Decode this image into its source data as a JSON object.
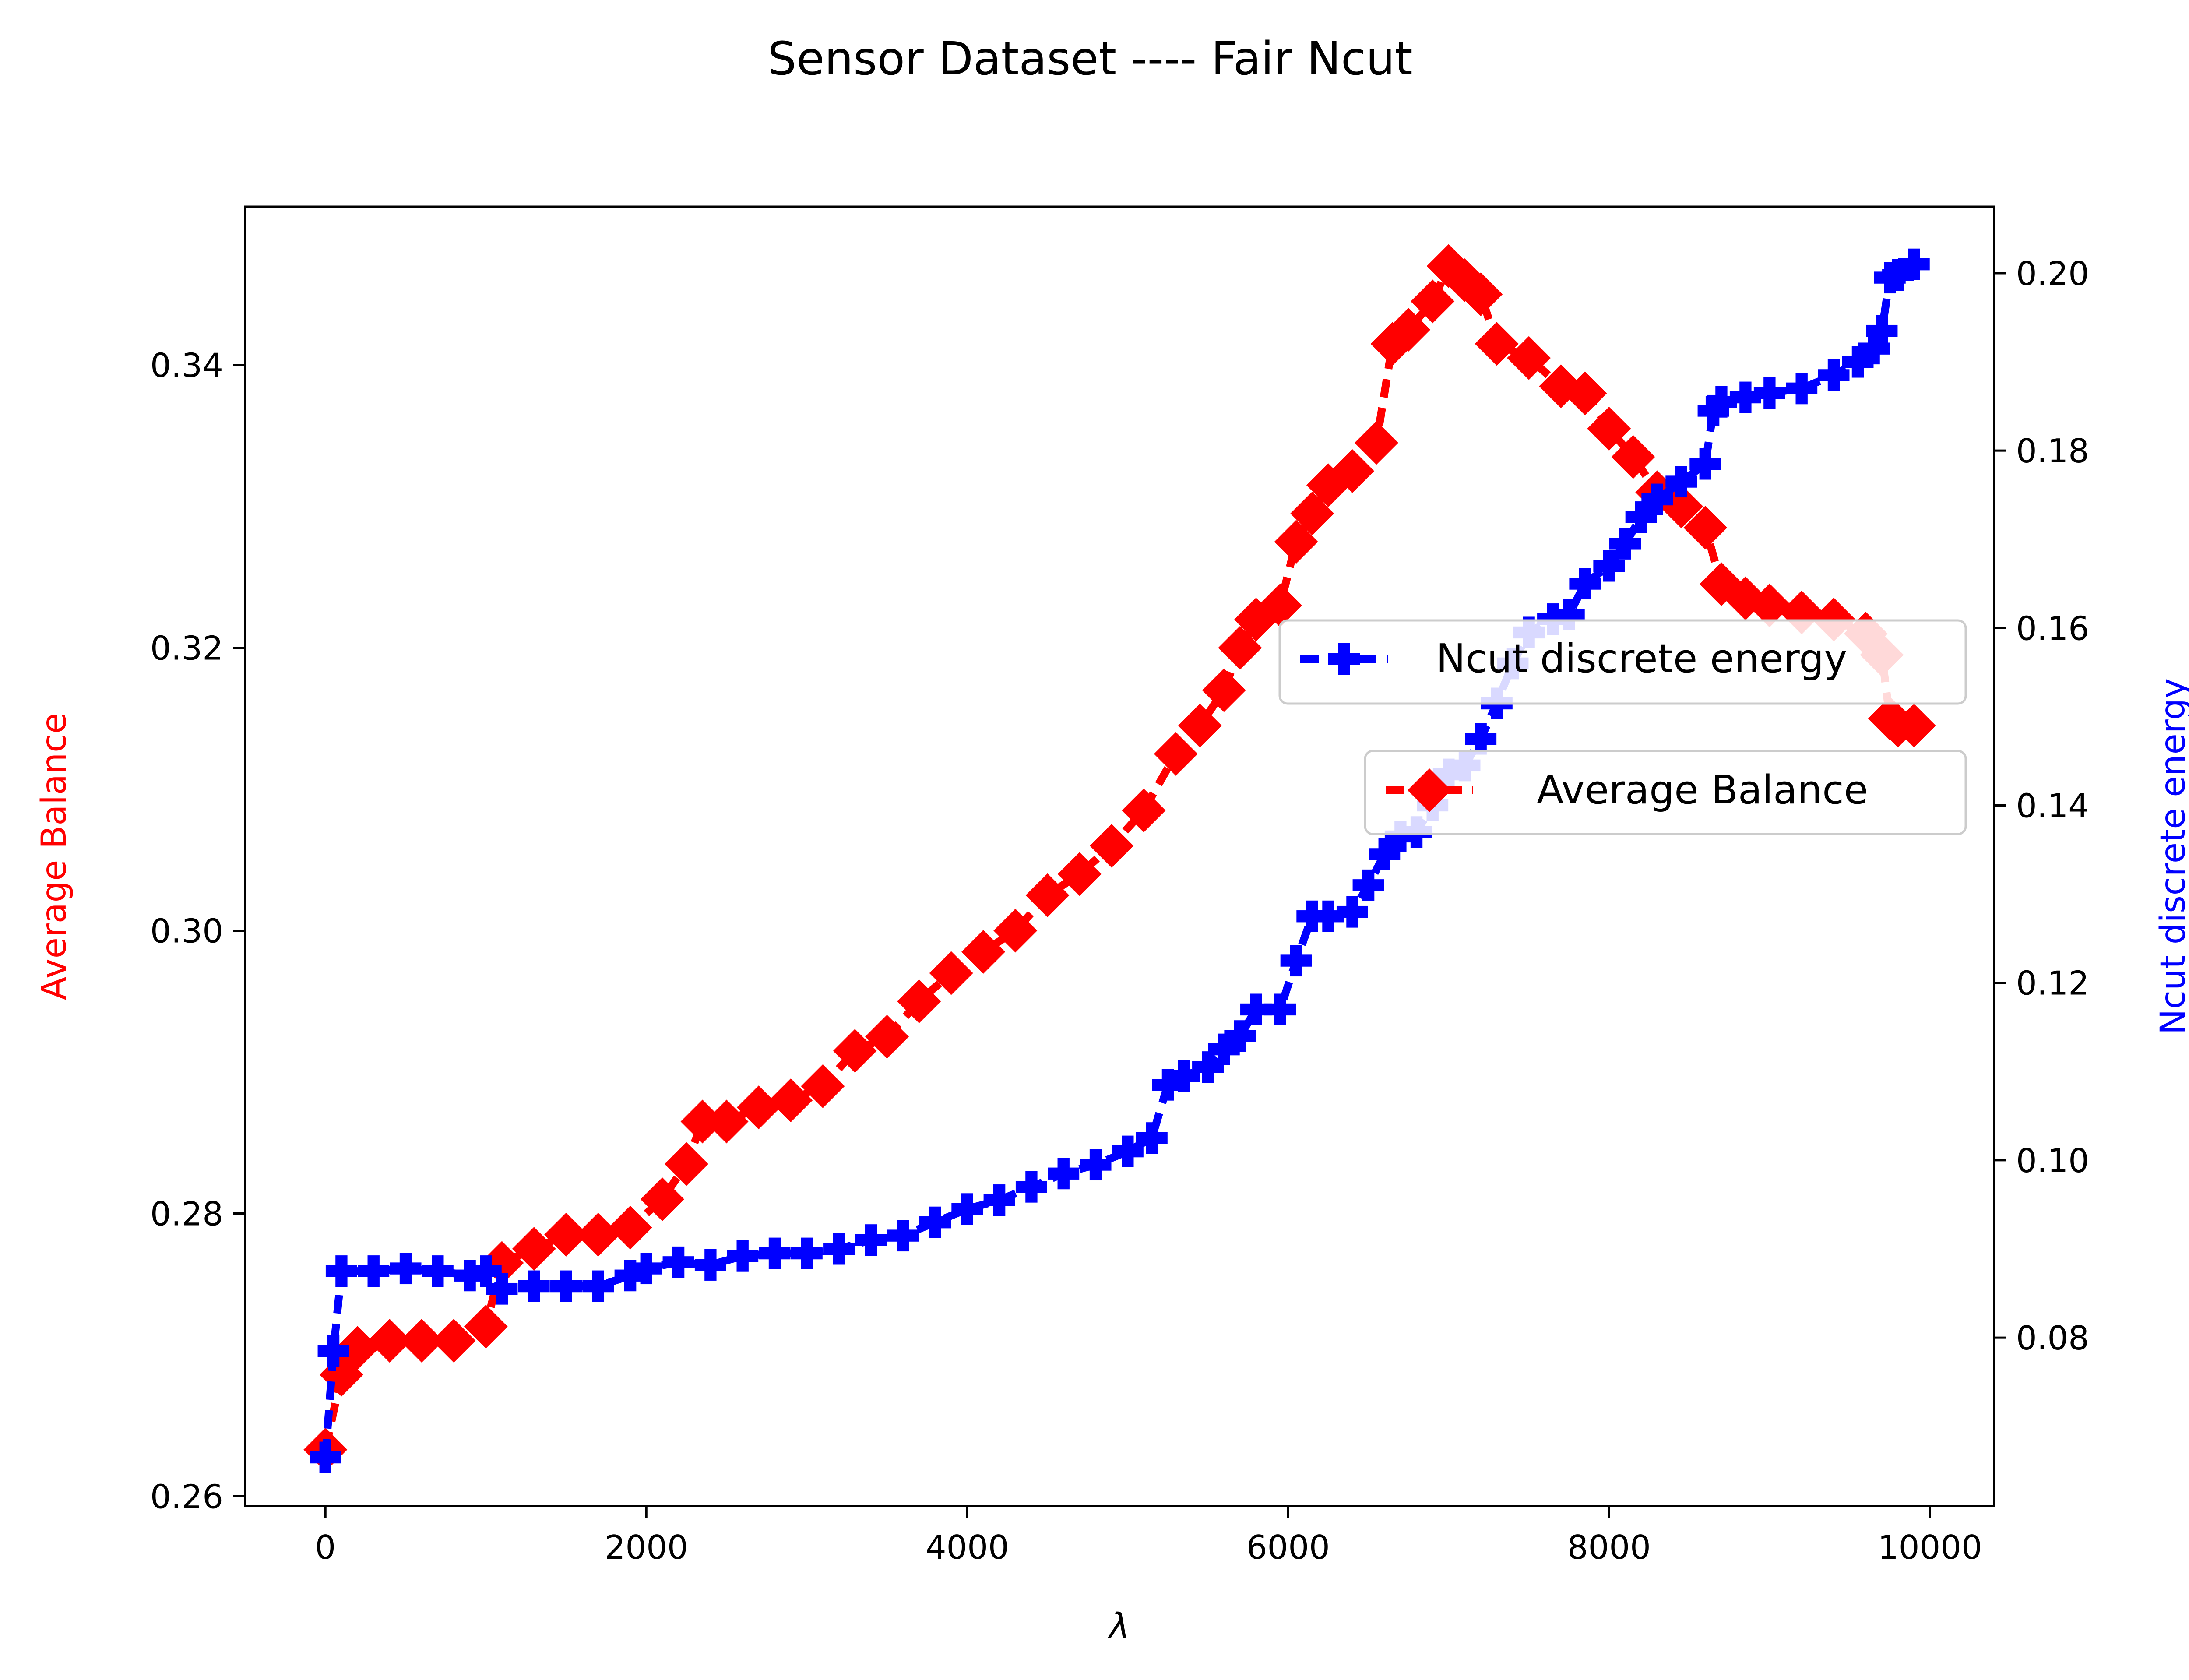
{
  "chart_data": {
    "type": "line",
    "title": "Sensor Dataset ---- Fair Ncut",
    "xlabel": "λ",
    "xlim": [
      -500,
      10400
    ],
    "xticks": [
      0,
      2000,
      4000,
      6000,
      8000,
      10000
    ],
    "grid": false,
    "left_axis": {
      "label": "Average Balance",
      "color": "#ff0000",
      "ylim": [
        0.2593,
        0.3512
      ],
      "ticks": [
        "0.26",
        "0.28",
        "0.30",
        "0.32",
        "0.34"
      ]
    },
    "right_axis": {
      "label": "Ncut discrete energy",
      "color": "#0000ff",
      "ylim": [
        0.061,
        0.2075
      ],
      "ticks": [
        "0.08",
        "0.10",
        "0.12",
        "0.14",
        "0.16",
        "0.18",
        "0.20"
      ]
    },
    "series": [
      {
        "name": "Average Balance",
        "axis": "left",
        "color": "#ff0000",
        "linestyle": "dashed",
        "marker": "diamond",
        "x": [
          0,
          100,
          200,
          400,
          600,
          800,
          1000,
          1100,
          1300,
          1500,
          1700,
          1900,
          2100,
          2250,
          2350,
          2500,
          2700,
          2900,
          3100,
          3300,
          3500,
          3700,
          3900,
          4100,
          4300,
          4500,
          4700,
          4900,
          5100,
          5300,
          5450,
          5600,
          5700,
          5800,
          5950,
          6050,
          6150,
          6250,
          6400,
          6550,
          6650,
          6750,
          6900,
          7000,
          7100,
          7200,
          7300,
          7500,
          7700,
          7850,
          8000,
          8150,
          8300,
          8450,
          8600,
          8700,
          8850,
          9000,
          9200,
          9400,
          9600,
          9700,
          9750,
          9800,
          9900
        ],
        "y": [
          0.2633,
          0.2686,
          0.2705,
          0.271,
          0.271,
          0.271,
          0.272,
          0.2765,
          0.2775,
          0.2785,
          0.2785,
          0.279,
          0.281,
          0.2835,
          0.2865,
          0.2865,
          0.2875,
          0.288,
          0.289,
          0.2915,
          0.2925,
          0.295,
          0.297,
          0.2985,
          0.3,
          0.3025,
          0.304,
          0.306,
          0.3085,
          0.3125,
          0.3145,
          0.317,
          0.32,
          0.322,
          0.323,
          0.3275,
          0.3295,
          0.3315,
          0.3325,
          0.3345,
          0.3415,
          0.3425,
          0.3445,
          0.347,
          0.346,
          0.345,
          0.3415,
          0.3405,
          0.3385,
          0.338,
          0.3355,
          0.3335,
          0.331,
          0.33,
          0.3285,
          0.3245,
          0.3235,
          0.323,
          0.3225,
          0.322,
          0.321,
          0.3195,
          0.315,
          0.3145,
          0.3145
        ]
      },
      {
        "name": "Ncut discrete energy",
        "axis": "right",
        "color": "#0000ff",
        "linestyle": "dashed",
        "marker": "plus",
        "x": [
          0,
          50,
          100,
          300,
          500,
          700,
          900,
          1000,
          1100,
          1300,
          1500,
          1700,
          1900,
          2000,
          2200,
          2400,
          2600,
          2800,
          3000,
          3200,
          3400,
          3600,
          3800,
          4000,
          4200,
          4400,
          4600,
          4800,
          5000,
          5150,
          5250,
          5350,
          5500,
          5600,
          5700,
          5800,
          5950,
          6050,
          6150,
          6250,
          6400,
          6500,
          6600,
          6700,
          6800,
          6900,
          7000,
          7100,
          7200,
          7300,
          7400,
          7500,
          7650,
          7750,
          7850,
          8000,
          8100,
          8200,
          8300,
          8450,
          8600,
          8650,
          8700,
          8850,
          9000,
          9200,
          9400,
          9550,
          9650,
          9700,
          9750,
          9800,
          9900
        ],
        "y": [
          0.0665,
          0.0785,
          0.0875,
          0.0875,
          0.0878,
          0.0875,
          0.087,
          0.0875,
          0.0855,
          0.0858,
          0.0858,
          0.0858,
          0.087,
          0.0878,
          0.0885,
          0.0882,
          0.0892,
          0.0895,
          0.0895,
          0.09,
          0.091,
          0.0915,
          0.093,
          0.0945,
          0.0955,
          0.097,
          0.0985,
          0.0995,
          0.101,
          0.1025,
          0.1085,
          0.1095,
          0.1105,
          0.1125,
          0.114,
          0.117,
          0.117,
          0.1225,
          0.1275,
          0.1275,
          0.128,
          0.131,
          0.1345,
          0.1365,
          0.137,
          0.14,
          0.1435,
          0.1445,
          0.1475,
          0.1515,
          0.156,
          0.1595,
          0.161,
          0.1615,
          0.165,
          0.167,
          0.1695,
          0.1725,
          0.1745,
          0.1765,
          0.1785,
          0.1845,
          0.1855,
          0.186,
          0.1865,
          0.187,
          0.1885,
          0.19,
          0.1915,
          0.1935,
          0.1995,
          0.1998,
          0.201
        ]
      }
    ],
    "legend": [
      {
        "label": "Ncut discrete energy",
        "color": "#0000ff",
        "marker": "plus",
        "placement": "center-right"
      },
      {
        "label": "Average Balance",
        "color": "#ff0000",
        "marker": "diamond",
        "placement": "center-right"
      }
    ]
  }
}
